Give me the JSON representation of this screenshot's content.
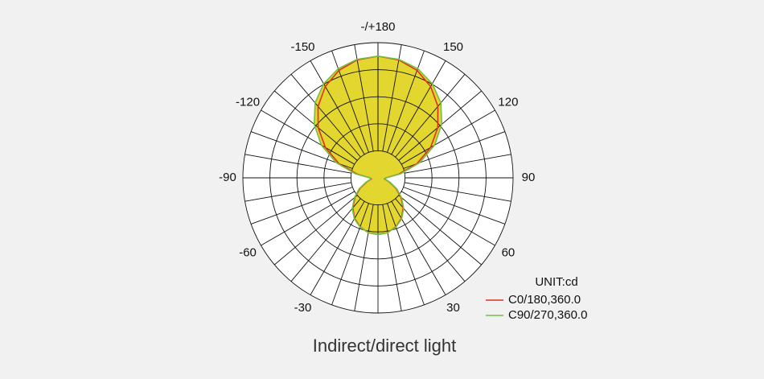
{
  "chart_data": {
    "type": "polar",
    "title": "Indirect/direct light",
    "legend_title": "UNIT:cd",
    "x": [
      -180,
      -170,
      -160,
      -150,
      -140,
      -130,
      -120,
      -110,
      -100,
      -90,
      -80,
      -70,
      -60,
      -50,
      -40,
      -30,
      -20,
      -10,
      0,
      10,
      20,
      30,
      40,
      50,
      60,
      70,
      80,
      90,
      100,
      110,
      120,
      130,
      140,
      150,
      160,
      170,
      180
    ],
    "series": [
      {
        "name": "C0/180,360.0",
        "color": "#e0301e",
        "values": [
          4.5,
          4.43,
          4.23,
          3.9,
          3.45,
          2.89,
          2.25,
          1.54,
          0.78,
          0.3,
          0.25,
          0.44,
          0.76,
          1.11,
          1.45,
          1.73,
          1.93,
          2.06,
          2.1,
          2.06,
          1.93,
          1.73,
          1.45,
          1.11,
          0.76,
          0.44,
          0.25,
          0.3,
          0.78,
          1.54,
          2.25,
          2.89,
          3.45,
          3.9,
          4.23,
          4.43,
          4.5
        ]
      },
      {
        "name": "C90/270,360.0",
        "color": "#74c043",
        "values": [
          4.5,
          4.45,
          4.3,
          4.02,
          3.62,
          3.08,
          2.42,
          1.65,
          0.85,
          0.3,
          0.27,
          0.47,
          0.8,
          1.14,
          1.48,
          1.75,
          1.94,
          2.06,
          2.1,
          2.06,
          1.94,
          1.75,
          1.48,
          1.14,
          0.8,
          0.47,
          0.27,
          0.3,
          0.85,
          1.65,
          2.42,
          3.08,
          3.62,
          4.02,
          4.3,
          4.45,
          4.5
        ]
      }
    ],
    "fill": "#e3d62e",
    "rlim": [
      0,
      5
    ],
    "rticks": [
      1,
      2,
      3,
      4,
      5
    ],
    "xticks": [
      {
        "value": 180,
        "label": "-/+180"
      },
      -150,
      150,
      -120,
      120,
      -90,
      90,
      -60,
      60,
      -30,
      30
    ],
    "grid": true
  }
}
